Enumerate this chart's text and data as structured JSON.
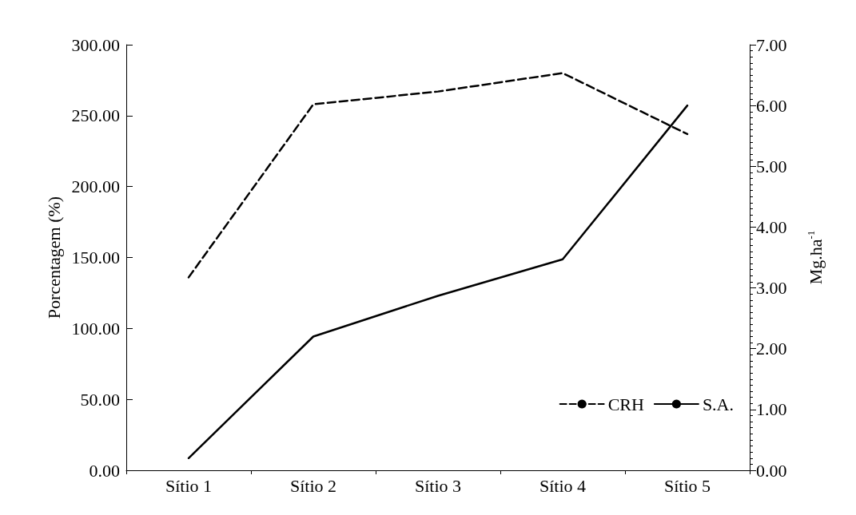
{
  "chart_data": {
    "type": "line",
    "categories": [
      "Sítio 1",
      "Sítio 2",
      "Sítio 3",
      "Sítio 4",
      "Sítio 5"
    ],
    "ylabel": "Porcentagem (%)",
    "y2label": "Mg.ha$^{-1}$",
    "series": [
      {
        "name": "CRH",
        "color": "#000000",
        "line_style": "dashed",
        "values": [
          136,
          258,
          267,
          280,
          237
        ]
      },
      {
        "name": "S.A.",
        "color": "#000000",
        "line_style": "solid",
        "axis": "y2",
        "values": [
          0.2,
          2.2,
          2.87,
          3.47,
          6.0
        ]
      }
    ],
    "ylim": [
      0,
      300
    ],
    "yticks": [
      {
        "value": 0,
        "label": "0.00"
      },
      {
        "value": 50,
        "label": "50.00"
      },
      {
        "value": 100,
        "label": "100.00"
      },
      {
        "value": 150,
        "label": "150.00"
      },
      {
        "value": 200,
        "label": "200.00"
      },
      {
        "value": 250,
        "label": "250.00"
      },
      {
        "value": 300,
        "label": "300.00"
      }
    ],
    "y2lim": [
      0,
      7
    ],
    "y2ticks": [
      {
        "value": 0,
        "label": "0.00"
      },
      {
        "value": 1,
        "label": "1.00"
      },
      {
        "value": 2,
        "label": "2.00"
      },
      {
        "value": 3,
        "label": "3.00"
      },
      {
        "value": 4,
        "label": "4.00"
      },
      {
        "value": 5,
        "label": "5.00"
      },
      {
        "value": 6,
        "label": "6.00"
      },
      {
        "value": 7,
        "label": "7.00"
      }
    ],
    "grid": false,
    "legend": "bottom right",
    "marker": "none"
  }
}
